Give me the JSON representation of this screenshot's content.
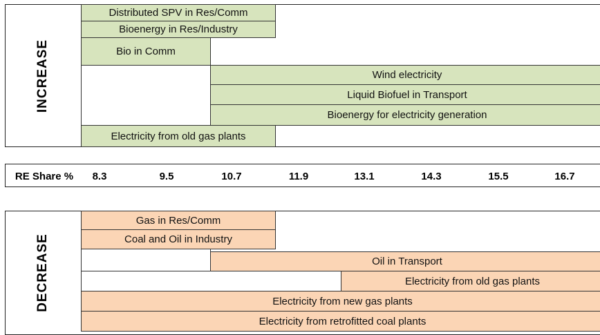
{
  "increase": {
    "label": "INCREASE",
    "items": [
      "Distributed SPV in Res/Comm",
      "Bioenergy in Res/Industry",
      "Bio in Comm",
      "Wind electricity",
      "Liquid Biofuel in Transport",
      "Bioenergy for electricity generation",
      "Electricity from old gas plants"
    ]
  },
  "re_share": {
    "label": "RE Share %",
    "values": [
      8.3,
      9.5,
      10.7,
      11.9,
      13.1,
      14.3,
      15.5,
      16.7
    ]
  },
  "decrease": {
    "label": "DECREASE",
    "items": [
      "Gas in Res/Comm",
      "Coal and Oil in Industry",
      "Oil in Transport",
      "Electricity from old gas plants",
      "Electricity from new gas plants",
      "Electricity from retrofitted coal plants"
    ]
  }
}
